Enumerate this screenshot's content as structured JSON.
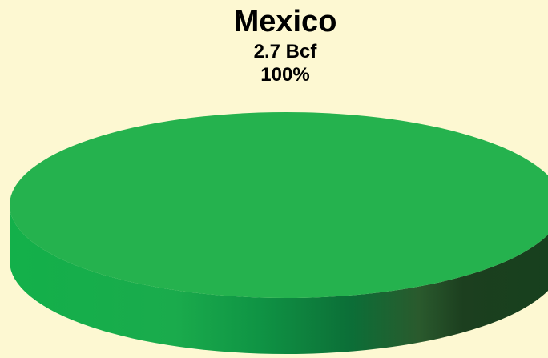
{
  "chart_data": {
    "type": "pie",
    "title": "",
    "slices": [
      {
        "label": "Mexico",
        "value": 2.7,
        "value_text": "2.7 Bcf",
        "percent_text": "100%",
        "color": "#25b24e"
      }
    ],
    "units": "Bcf",
    "legend": "none",
    "style": "3d"
  },
  "colors": {
    "background": "#fdf8d2",
    "top": "#25b24e",
    "side_light": "#19b04a",
    "side_dark": "#183e1d"
  }
}
